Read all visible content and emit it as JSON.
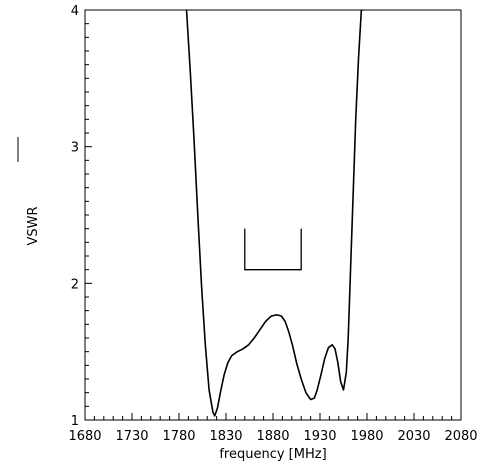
{
  "chart_data": {
    "type": "line",
    "title": "",
    "xlabel": "frequency [MHz]",
    "ylabel": "VSWR",
    "xlim": [
      1680,
      2080
    ],
    "ylim": [
      1,
      4
    ],
    "grid": false,
    "legend": "left",
    "x_ticks": [
      "1680",
      "1730",
      "1780",
      "1830",
      "1880",
      "1930",
      "1980",
      "2030",
      "2080"
    ],
    "y_ticks": [
      "1",
      "2",
      "3",
      "4"
    ],
    "series": [
      {
        "name": "VSWR",
        "x": [
          1788,
          1792,
          1796,
          1800,
          1804,
          1808,
          1812,
          1816,
          1818,
          1821,
          1824,
          1828,
          1832,
          1836,
          1842,
          1848,
          1854,
          1860,
          1866,
          1872,
          1878,
          1884,
          1889,
          1893,
          1897,
          1901,
          1905,
          1910,
          1915,
          1920,
          1924,
          1927,
          1931,
          1935,
          1939,
          1943,
          1946,
          1949,
          1952,
          1955,
          1958,
          1960,
          1962,
          1965,
          1968,
          1971,
          1974,
          1976
        ],
        "y": [
          4.0,
          3.55,
          3.05,
          2.5,
          1.98,
          1.55,
          1.22,
          1.06,
          1.03,
          1.09,
          1.2,
          1.33,
          1.42,
          1.47,
          1.5,
          1.52,
          1.55,
          1.6,
          1.66,
          1.72,
          1.76,
          1.77,
          1.76,
          1.72,
          1.64,
          1.54,
          1.42,
          1.3,
          1.2,
          1.15,
          1.16,
          1.22,
          1.33,
          1.45,
          1.53,
          1.55,
          1.52,
          1.42,
          1.28,
          1.22,
          1.35,
          1.6,
          2.0,
          2.6,
          3.2,
          3.65,
          4.0,
          4.0
        ],
        "color": "#000000"
      }
    ],
    "annotations": [
      {
        "type": "bracket",
        "x_start": 1850,
        "x_end": 1910,
        "y_bottom": 2.1,
        "y_top": 2.4,
        "color": "#000000"
      }
    ]
  }
}
